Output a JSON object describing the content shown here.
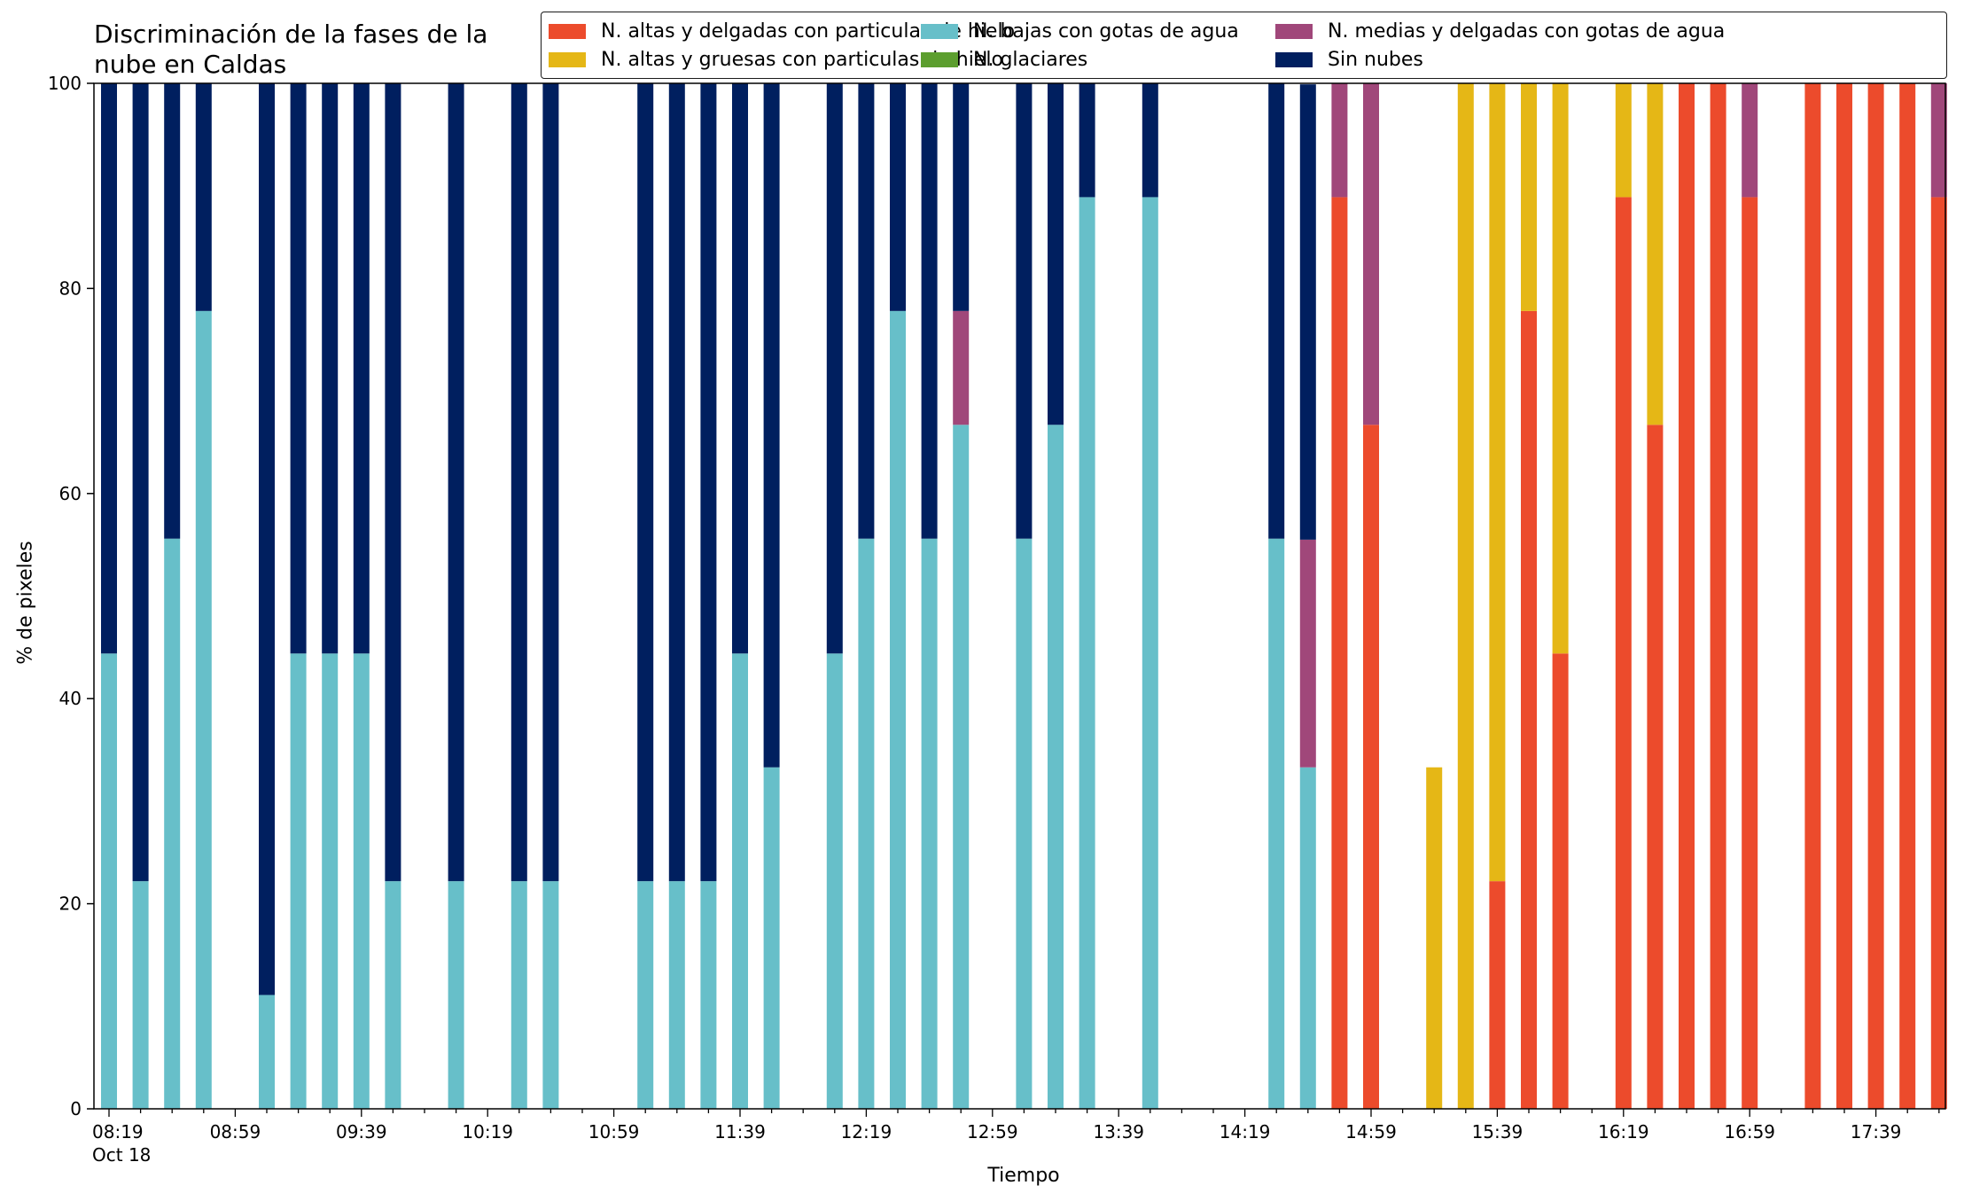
{
  "chart_data": {
    "type": "bar",
    "stacked": true,
    "title": "Discriminación de la fases de la\nnube en Caldas",
    "xlabel": "Tiempo",
    "ylabel": "% de pixeles",
    "ylim": [
      0,
      100
    ],
    "yticks": [
      0,
      20,
      40,
      60,
      80,
      100
    ],
    "legend_position": "top-right",
    "x_tick_labels": [
      "08:19\nOct 18",
      "08:59",
      "09:39",
      "10:19",
      "10:59",
      "11:39",
      "12:19",
      "12:59",
      "13:39",
      "14:19",
      "14:59",
      "15:39",
      "16:19",
      "16:59",
      "17:39"
    ],
    "x_start": "08:19",
    "x_end": "17:59",
    "x_interval_minutes": 10,
    "x": [
      "08:19",
      "08:29",
      "08:39",
      "08:49",
      "08:59",
      "09:09",
      "09:19",
      "09:29",
      "09:39",
      "09:49",
      "09:59",
      "10:09",
      "10:19",
      "10:29",
      "10:39",
      "10:49",
      "10:59",
      "11:09",
      "11:19",
      "11:29",
      "11:39",
      "11:49",
      "11:59",
      "12:09",
      "12:19",
      "12:29",
      "12:39",
      "12:49",
      "12:59",
      "13:09",
      "13:19",
      "13:29",
      "13:39",
      "13:49",
      "13:59",
      "14:09",
      "14:19",
      "14:29",
      "14:39",
      "14:49",
      "14:59",
      "15:09",
      "15:19",
      "15:29",
      "15:39",
      "15:49",
      "15:59",
      "16:09",
      "16:19",
      "16:29",
      "16:39",
      "16:49",
      "16:59",
      "17:09",
      "17:19",
      "17:29",
      "17:39",
      "17:49",
      "17:59"
    ],
    "series": [
      {
        "name": "N. altas y delgadas con particulas de hielo",
        "color": "#ec4b2c",
        "values": [
          0,
          0,
          0,
          0,
          null,
          0,
          0,
          0,
          0,
          0,
          null,
          0,
          null,
          0,
          0,
          null,
          null,
          0,
          0,
          0,
          0,
          0,
          null,
          0,
          0,
          0,
          0,
          0,
          0,
          null,
          0,
          0,
          0,
          null,
          0,
          null,
          null,
          0,
          0,
          88.9,
          66.7,
          null,
          0,
          0,
          22.2,
          77.8,
          44.4,
          null,
          88.9,
          66.7,
          100,
          100,
          88.9,
          null,
          100,
          100,
          100,
          100,
          88.9
        ]
      },
      {
        "name": "N. altas y gruesas con particulas de hielo",
        "color": "#e5b716",
        "values": [
          0,
          0,
          0,
          0,
          null,
          0,
          0,
          0,
          0,
          0,
          null,
          0,
          null,
          0,
          0,
          null,
          null,
          0,
          0,
          0,
          0,
          0,
          null,
          0,
          0,
          0,
          0,
          0,
          0,
          null,
          0,
          0,
          0,
          null,
          0,
          null,
          null,
          0,
          0,
          0,
          0,
          null,
          33.3,
          100,
          77.8,
          22.2,
          55.6,
          null,
          11.1,
          33.3,
          0,
          0,
          0,
          null,
          0,
          0,
          0,
          0,
          0
        ]
      },
      {
        "name": "N. bajas con gotas de agua",
        "color": "#67bfc9",
        "values": [
          44.4,
          22.2,
          55.6,
          77.8,
          null,
          11.1,
          44.4,
          44.4,
          44.4,
          22.2,
          null,
          22.2,
          null,
          22.2,
          22.2,
          null,
          null,
          22.2,
          22.2,
          22.2,
          44.4,
          33.3,
          null,
          44.4,
          55.6,
          77.8,
          55.6,
          66.7,
          null,
          55.6,
          66.7,
          88.9,
          null,
          88.9,
          null,
          null,
          null,
          55.6,
          33.3,
          0,
          0,
          null,
          0,
          0,
          0,
          0,
          0,
          null,
          0,
          0,
          0,
          0,
          0,
          null,
          0,
          0,
          0,
          0,
          0
        ]
      },
      {
        "name": "N. glaciares",
        "color": "#5c9e2e",
        "values": [
          0,
          0,
          0,
          0,
          null,
          0,
          0,
          0,
          0,
          0,
          null,
          0,
          null,
          0,
          0,
          null,
          null,
          0,
          0,
          0,
          0,
          0,
          null,
          0,
          0,
          0,
          0,
          0,
          0,
          null,
          0,
          0,
          0,
          null,
          0,
          null,
          null,
          0,
          0,
          0,
          0,
          null,
          0,
          0,
          0,
          0,
          0,
          null,
          0,
          0,
          0,
          0,
          0,
          null,
          0,
          0,
          0,
          0,
          0
        ]
      },
      {
        "name": "N. medias y delgadas con gotas de agua",
        "color": "#a0477a",
        "values": [
          0,
          0,
          0,
          0,
          null,
          0,
          0,
          0,
          0,
          0,
          null,
          0,
          null,
          0,
          0,
          null,
          null,
          0,
          0,
          0,
          0,
          0,
          null,
          0,
          0,
          0,
          0,
          11.1,
          null,
          0,
          0,
          0,
          null,
          0,
          null,
          null,
          null,
          0,
          22.2,
          11.1,
          33.3,
          null,
          0,
          0,
          0,
          0,
          0,
          null,
          0,
          0,
          0,
          0,
          11.1,
          null,
          0,
          0,
          0,
          0,
          11.1
        ]
      },
      {
        "name": "Sin nubes",
        "color": "#001f5f",
        "values": [
          55.6,
          77.8,
          44.4,
          22.2,
          null,
          88.9,
          55.6,
          55.6,
          55.6,
          77.8,
          null,
          77.8,
          null,
          77.8,
          77.8,
          null,
          null,
          77.8,
          77.8,
          77.8,
          55.6,
          66.7,
          null,
          55.6,
          44.4,
          22.2,
          44.4,
          22.2,
          null,
          44.4,
          33.3,
          11.1,
          null,
          11.1,
          null,
          null,
          null,
          44.4,
          44.4,
          0,
          0,
          null,
          0,
          0,
          0,
          0,
          0,
          null,
          0,
          0,
          0,
          0,
          0,
          null,
          0,
          0,
          0,
          0,
          0
        ]
      }
    ]
  }
}
